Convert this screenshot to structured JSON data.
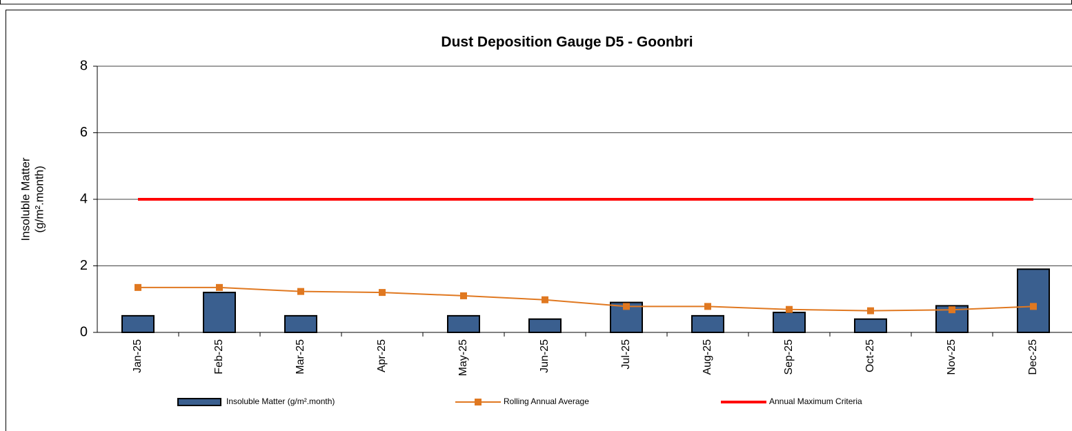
{
  "chart_data": {
    "type": "bar_line",
    "title": "Dust Deposition Gauge D5  - Goonbri",
    "ylabel": [
      "Insoluble Matter",
      "(g/m².month)"
    ],
    "categories": [
      "Jan-25",
      "Feb-25",
      "Mar-25",
      "Apr-25",
      "May-25",
      "Jun-25",
      "Jul-25",
      "Aug-25",
      "Sep-25",
      "Oct-25",
      "Nov-25",
      "Dec-25"
    ],
    "series": [
      {
        "name": "Insoluble Matter (g/m².month)",
        "type": "bar",
        "color": "#3a5f8f",
        "values": [
          0.5,
          1.2,
          0.5,
          null,
          0.5,
          0.4,
          0.9,
          0.5,
          0.6,
          0.4,
          0.8,
          1.9
        ]
      },
      {
        "name": "Rolling Annual Average",
        "type": "line",
        "color": "#e07820",
        "marker": "square",
        "values": [
          1.35,
          1.35,
          1.23,
          1.2,
          1.1,
          0.98,
          0.78,
          0.78,
          0.69,
          0.65,
          0.68,
          0.78
        ]
      },
      {
        "name": "Annual Maximum Criteria",
        "type": "line",
        "color": "#ff0000",
        "values": [
          4,
          4,
          4,
          4,
          4,
          4,
          4,
          4,
          4,
          4,
          4,
          4
        ]
      }
    ],
    "ylim": [
      0,
      8
    ],
    "yticks": [
      0,
      2,
      4,
      6,
      8
    ],
    "grid": true
  }
}
